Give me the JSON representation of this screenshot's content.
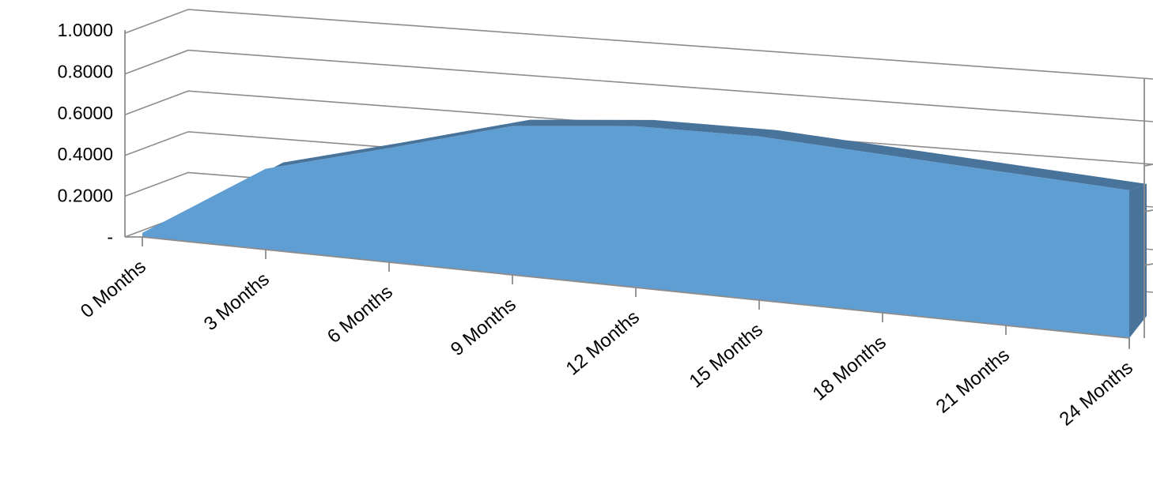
{
  "chart_data": {
    "type": "area",
    "view": "3d",
    "categories": [
      "0 Months",
      "3 Months",
      "6 Months",
      "9 Months",
      "12 Months",
      "15 Months",
      "18 Months",
      "21 Months",
      "24 Months"
    ],
    "series": [
      {
        "values": [
          0.02,
          0.4,
          0.57,
          0.75,
          0.82,
          0.84,
          0.82,
          0.8,
          0.78
        ]
      }
    ],
    "y_ticks": [
      "-",
      "0.2000",
      "0.4000",
      "0.6000",
      "0.8000",
      "1.0000"
    ],
    "ylim": [
      0,
      1
    ],
    "grid": true,
    "legend": "none",
    "colors": {
      "area": "#5f9ed3",
      "area_top": "#48739b",
      "grid": "#8c8c8c"
    }
  }
}
